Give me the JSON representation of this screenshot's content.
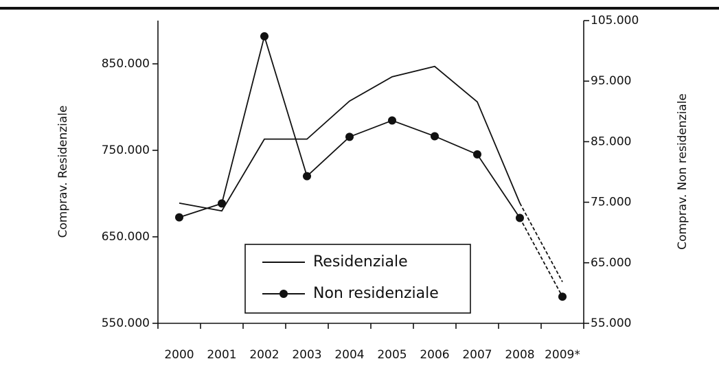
{
  "chart_data": {
    "type": "line",
    "categories": [
      "2000",
      "2001",
      "2002",
      "2003",
      "2004",
      "2005",
      "2006",
      "2007",
      "2008",
      "2009*"
    ],
    "series": [
      {
        "name": "Residenziale",
        "color": "#111111",
        "values": [
          689000,
          680000,
          763000,
          763000,
          807000,
          835000,
          847000,
          806000,
          689000,
          598000
        ]
      },
      {
        "name": "Non residenziale",
        "color": "#111111",
        "axis": "y2",
        "values": [
          72500,
          74800,
          102400,
          79300,
          85800,
          88500,
          85900,
          82900,
          72400,
          59400
        ]
      }
    ],
    "ylabel": "Comprav. Residenziale",
    "y2label": "Comprav. Non residenziale",
    "ylim": [
      550000,
      900000
    ],
    "yticks": [
      {
        "value": 550000,
        "label": "550.000"
      },
      {
        "value": 650000,
        "label": "650.000"
      },
      {
        "value": 750000,
        "label": "750.000"
      },
      {
        "value": 850000,
        "label": "850.000"
      }
    ],
    "y2lim": [
      55000,
      105000
    ],
    "y2ticks": [
      {
        "value": 55000,
        "label": "55.000"
      },
      {
        "value": 65000,
        "label": "65.000"
      },
      {
        "value": 75000,
        "label": "75.000"
      },
      {
        "value": 85000,
        "label": "85.000"
      },
      {
        "value": 95000,
        "label": "95.000"
      },
      {
        "value": 105000,
        "label": "105.000"
      }
    ]
  }
}
